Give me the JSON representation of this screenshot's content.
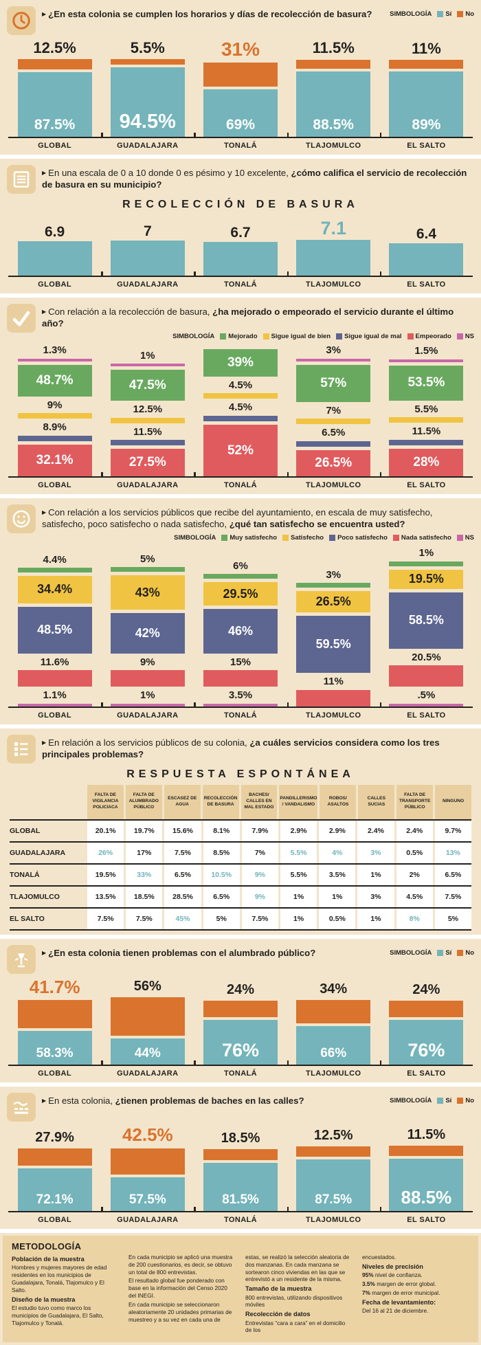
{
  "colors": {
    "cream": "#f3e5cb",
    "tan": "#e9cf9f",
    "teal": "#74b4ba",
    "teal_text": "#6fb3ba",
    "orange": "#d9732e",
    "green": "#69a95f",
    "yellow": "#f1c342",
    "navy": "#5d6591",
    "red": "#e05b5e",
    "pink": "#c868a8",
    "ink": "#23211f"
  },
  "municipalities": [
    "GLOBAL",
    "GUADALAJARA",
    "TONALÁ",
    "TLAJOMULCO",
    "EL SALTO"
  ],
  "legend_title": "SIMBOLOGÍA",
  "sections": [
    {
      "icon": "clock-icon",
      "question": {
        "pre": "",
        "bold": "¿En esta colonia se cumplen los horarios y días de recolección de basura?"
      },
      "legend": {
        "title": "SIMBOLOGÍA",
        "position": "right",
        "items": [
          {
            "label": "Sí",
            "color_key": "teal"
          },
          {
            "label": "No",
            "color_key": "orange"
          }
        ]
      },
      "chart": 0
    },
    {
      "icon": "checklist-icon",
      "question": {
        "pre": "En una escala de 0 a 10 donde 0 es pésimo y 10 excelente, ",
        "bold": "¿cómo califica el servicio de recolección de basura en su municipio?"
      },
      "chart": 1
    },
    {
      "icon": "checkmark-icon",
      "question": {
        "pre": "Con relación a la recolección de basura, ",
        "bold": "¿ha mejorado o empeorado el servicio durante el último año?"
      },
      "legend": {
        "title": "SIMBOLOGÍA",
        "position": "below",
        "items": [
          {
            "label": "Mejorado",
            "color_key": "green"
          },
          {
            "label": "Sigue igual de bien",
            "color_key": "yellow"
          },
          {
            "label": "Sigue igual de mal",
            "color_key": "navy"
          },
          {
            "label": "Empeorado",
            "color_key": "red"
          },
          {
            "label": "NS",
            "color_key": "pink"
          }
        ]
      },
      "chart": 2
    },
    {
      "icon": "smiley-icon",
      "question": {
        "pre": "Con relación a los servicios públicos que recibe del ayuntamiento, en escala de muy satisfecho, satisfecho, poco satisfecho o nada satisfecho, ",
        "bold": "¿qué tan satisfecho se encuentra usted?"
      },
      "legend": {
        "title": "SIMBOLOGÍA",
        "position": "below",
        "items": [
          {
            "label": "Muy satisfecho",
            "color_key": "green"
          },
          {
            "label": "Satisfecho",
            "color_key": "yellow"
          },
          {
            "label": "Poco satisfecho",
            "color_key": "navy"
          },
          {
            "label": "Nada satisfecho",
            "color_key": "red"
          },
          {
            "label": "NS",
            "color_key": "pink"
          }
        ]
      },
      "chart": 3
    },
    {
      "icon": "list-icon",
      "question": {
        "pre": "En relación a los servicios públicos de su colonia, ",
        "bold": "¿a cuáles servicios considera como los tres principales problemas?"
      },
      "chart": 4
    },
    {
      "icon": "streetlamp-icon",
      "question": {
        "pre": "",
        "bold": "¿En esta colonia tienen problemas con el alumbrado público?"
      },
      "legend": {
        "title": "SIMBOLOGÍA",
        "position": "right",
        "items": [
          {
            "label": "Sí",
            "color_key": "teal"
          },
          {
            "label": "No",
            "color_key": "orange"
          }
        ]
      },
      "chart": 5
    },
    {
      "icon": "road-icon",
      "question": {
        "pre": "En esta colonia, ",
        "bold": "¿tienen problemas de baches en las calles?"
      },
      "legend": {
        "title": "SIMBOLOGÍA",
        "position": "right",
        "items": [
          {
            "label": "Sí",
            "color_key": "teal"
          },
          {
            "label": "No",
            "color_key": "orange"
          }
        ]
      },
      "chart": 6
    }
  ],
  "chart_data": [
    {
      "id": "horarios",
      "type": "stacked-bar-si-no",
      "categories": [
        "GLOBAL",
        "GUADALAJARA",
        "TONALÁ",
        "TLAJOMULCO",
        "EL SALTO"
      ],
      "series": [
        {
          "name": "Sí",
          "color_key": "teal",
          "values": [
            87.5,
            94.5,
            69,
            88.5,
            89
          ],
          "labels": [
            "87.5%",
            "94.5%",
            "69%",
            "88.5%",
            "89%"
          ]
        },
        {
          "name": "No",
          "color_key": "orange",
          "values": [
            12.5,
            5.5,
            31,
            11.5,
            11
          ],
          "labels": [
            "12.5%",
            "5.5%",
            "31%",
            "11.5%",
            "11%"
          ]
        }
      ],
      "no_highlight": 2,
      "si_emphasis": [
        1
      ]
    },
    {
      "id": "calificacion",
      "type": "bar",
      "title": "RECOLECCIÓN DE BASURA",
      "categories": [
        "GLOBAL",
        "GUADALAJARA",
        "TONALÁ",
        "TLAJOMULCO",
        "EL SALTO"
      ],
      "values": [
        6.9,
        7,
        6.7,
        7.1,
        6.4
      ],
      "labels": [
        "6.9",
        "7",
        "6.7",
        "7.1",
        "6.4"
      ],
      "highlight": 3,
      "ylim": [
        0,
        10
      ]
    },
    {
      "id": "mejora",
      "type": "stacked-bar",
      "categories": [
        "GLOBAL",
        "GUADALAJARA",
        "TONALÁ",
        "TLAJOMULCO",
        "EL SALTO"
      ],
      "series": [
        {
          "name": "NS",
          "color_key": "pink",
          "values": [
            1.3,
            1,
            null,
            3,
            1.5
          ],
          "labels": [
            "1.3%",
            "1%",
            null,
            "3%",
            "1.5%"
          ]
        },
        {
          "name": "Mejorado",
          "color_key": "green",
          "values": [
            48.7,
            47.5,
            39,
            57,
            53.5
          ],
          "labels": [
            "48.7%",
            "47.5%",
            "39%",
            "57%",
            "53.5%"
          ]
        },
        {
          "name": "Sigue igual de bien",
          "color_key": "yellow",
          "values": [
            9,
            12.5,
            4.5,
            7,
            5.5
          ],
          "labels": [
            "9%",
            "12.5%",
            "4.5%",
            "7%",
            "5.5%"
          ]
        },
        {
          "name": "Sigue igual de mal",
          "color_key": "navy",
          "values": [
            8.9,
            11.5,
            4.5,
            6.5,
            11.5
          ],
          "labels": [
            "8.9%",
            "11.5%",
            "4.5%",
            "6.5%",
            "11.5%"
          ]
        },
        {
          "name": "Empeorado",
          "color_key": "red",
          "values": [
            32.1,
            27.5,
            52,
            26.5,
            28
          ],
          "labels": [
            "32.1%",
            "27.5%",
            "52%",
            "26.5%",
            "28%"
          ]
        }
      ]
    },
    {
      "id": "satisfaccion",
      "type": "stacked-bar",
      "categories": [
        "GLOBAL",
        "GUADALAJARA",
        "TONALÁ",
        "TLAJOMULCO",
        "EL SALTO"
      ],
      "series": [
        {
          "name": "Muy satisfecho",
          "color_key": "green",
          "values": [
            4.4,
            5,
            6,
            3,
            1
          ],
          "labels": [
            "4.4%",
            "5%",
            "6%",
            "3%",
            "1%"
          ]
        },
        {
          "name": "Satisfecho",
          "color_key": "yellow",
          "values": [
            34.4,
            43,
            29.5,
            26.5,
            19.5
          ],
          "labels": [
            "34.4%",
            "43%",
            "29.5%",
            "26.5%",
            "19.5%"
          ]
        },
        {
          "name": "Poco satisfecho",
          "color_key": "navy",
          "values": [
            48.5,
            42,
            46,
            59.5,
            58.5
          ],
          "labels": [
            "48.5%",
            "42%",
            "46%",
            "59.5%",
            "58.5%"
          ]
        },
        {
          "name": "Nada satisfecho",
          "color_key": "red",
          "values": [
            11.6,
            9,
            15,
            11,
            20.5
          ],
          "labels": [
            "11.6%",
            "9%",
            "15%",
            "11%",
            "20.5%"
          ]
        },
        {
          "name": "NS",
          "color_key": "pink",
          "values": [
            1.1,
            1,
            3.5,
            null,
            0.5
          ],
          "labels": [
            "1.1%",
            "1%",
            "3.5%",
            null,
            ".5%"
          ]
        }
      ]
    },
    {
      "id": "problemas",
      "type": "table",
      "title": "RESPUESTA ESPONTÁNEA",
      "columns": [
        "FALTA DE VIGILANCIA POLICIACA",
        "FALTA DE ALUMBRADO PÚBLICO",
        "ESCASEZ DE AGUA",
        "RECOLECCIÓN DE BASURA",
        "BACHES/ CALLES EN MAL ESTADO",
        "PANDILLERISMO / VANDALISMO",
        "ROBOS/ ASALTOS",
        "CALLES SUCIAS",
        "FALTA DE TRANSPORTE PÚBLICO",
        "NINGUNO"
      ],
      "rows": [
        {
          "label": "GLOBAL",
          "values": [
            "20.1%",
            "19.7%",
            "15.6%",
            "8.1%",
            "7.9%",
            "2.9%",
            "2.9%",
            "2.4%",
            "2.4%",
            "9.7%"
          ],
          "highlights": []
        },
        {
          "label": "GUADALAJARA",
          "values": [
            "26%",
            "17%",
            "7.5%",
            "8.5%",
            "7%",
            "5.5%",
            "4%",
            "3%",
            "0.5%",
            "13%"
          ],
          "highlights": [
            0,
            5,
            6,
            7,
            9
          ]
        },
        {
          "label": "TONALÁ",
          "values": [
            "19.5%",
            "33%",
            "6.5%",
            "10.5%",
            "9%",
            "5.5%",
            "3.5%",
            "1%",
            "2%",
            "6.5%"
          ],
          "highlights": [
            1,
            3,
            4
          ]
        },
        {
          "label": "TLAJOMULCO",
          "values": [
            "13.5%",
            "18.5%",
            "28.5%",
            "6.5%",
            "9%",
            "1%",
            "1%",
            "3%",
            "4.5%",
            "7.5%"
          ],
          "highlights": [
            4
          ]
        },
        {
          "label": "EL SALTO",
          "values": [
            "7.5%",
            "7.5%",
            "45%",
            "5%",
            "7.5%",
            "1%",
            "0.5%",
            "1%",
            "8%",
            "5%"
          ],
          "highlights": [
            2,
            8
          ]
        }
      ]
    },
    {
      "id": "alumbrado",
      "type": "stacked-bar-si-no",
      "categories": [
        "GLOBAL",
        "GUADALAJARA",
        "TONALÁ",
        "TLAJOMULCO",
        "EL SALTO"
      ],
      "series": [
        {
          "name": "Sí",
          "color_key": "teal",
          "values": [
            58.3,
            44,
            76,
            66,
            76
          ],
          "labels": [
            "58.3%",
            "44%",
            "76%",
            "66%",
            "76%"
          ]
        },
        {
          "name": "No",
          "color_key": "orange",
          "values": [
            41.7,
            56,
            24,
            34,
            24
          ],
          "labels": [
            "41.7%",
            "56%",
            "24%",
            "34%",
            "24%"
          ]
        }
      ],
      "no_highlight": 0,
      "si_emphasis": [
        2,
        4
      ]
    },
    {
      "id": "baches",
      "type": "stacked-bar-si-no",
      "categories": [
        "GLOBAL",
        "GUADALAJARA",
        "TONALÁ",
        "TLAJOMULCO",
        "EL SALTO"
      ],
      "series": [
        {
          "name": "Sí",
          "color_key": "teal",
          "values": [
            72.1,
            57.5,
            81.5,
            87.5,
            88.5
          ],
          "labels": [
            "72.1%",
            "57.5%",
            "81.5%",
            "87.5%",
            "88.5%"
          ]
        },
        {
          "name": "No",
          "color_key": "orange",
          "values": [
            27.9,
            42.5,
            18.5,
            12.5,
            11.5
          ],
          "labels": [
            "27.9%",
            "42.5%",
            "18.5%",
            "12.5%",
            "11.5%"
          ]
        }
      ],
      "no_highlight": 1,
      "si_emphasis": [
        4
      ]
    }
  ],
  "metodologia": {
    "heading": "METODOLOGÍA",
    "columns": [
      [
        {
          "bold": "Población de la muestra"
        },
        {
          "text": "Hombres y mujeres mayores de edad residentes en los municipios de Guadalajara, Tonalá, Tlajomulco y El Salto."
        },
        {
          "bold": "Diseño de la muestra"
        },
        {
          "text": "El estudio tuvo como marco los municipios de Guadalajara, El Salto, Tlajomulco y Tonalá."
        }
      ],
      [
        {
          "text": "En cada municipio se aplicó una muestra de 200 cuestionarios, es decir, se obtuvo un total de 800 entrevistas."
        },
        {
          "text": "El resultado global fue ponderado con base en la información del Censo 2020 del INEGI."
        },
        {
          "text": "En cada municipio se seleccionaron aleatoriamente 20 unidades primarias de muestreo y a su vez en cada una de"
        }
      ],
      [
        {
          "text": "estas, se realizó la selección aleatoria de dos manzanas. En cada manzana se sortearon cinco viviendas en las que se entrevistó a un residente de la misma."
        },
        {
          "bold": "Tamaño de la muestra"
        },
        {
          "text": "800 entrevistas, utilizando dispositivos móviles"
        },
        {
          "bold": "Recolección de datos"
        },
        {
          "text": "Entrevistas “cara a cara” en el domicilio de los"
        }
      ],
      [
        {
          "text": "encuestados."
        },
        {
          "bold": "Niveles de precisión"
        },
        {
          "lead": "95%",
          "text": " nivel de confianza."
        },
        {
          "lead": "3.5%",
          "text": " margen de error global."
        },
        {
          "lead": "7%",
          "text": " margen de error municipal."
        },
        {
          "bold": "Fecha de levantamiento:"
        },
        {
          "text": "Del 16 al 21 de diciembre."
        }
      ]
    ]
  }
}
